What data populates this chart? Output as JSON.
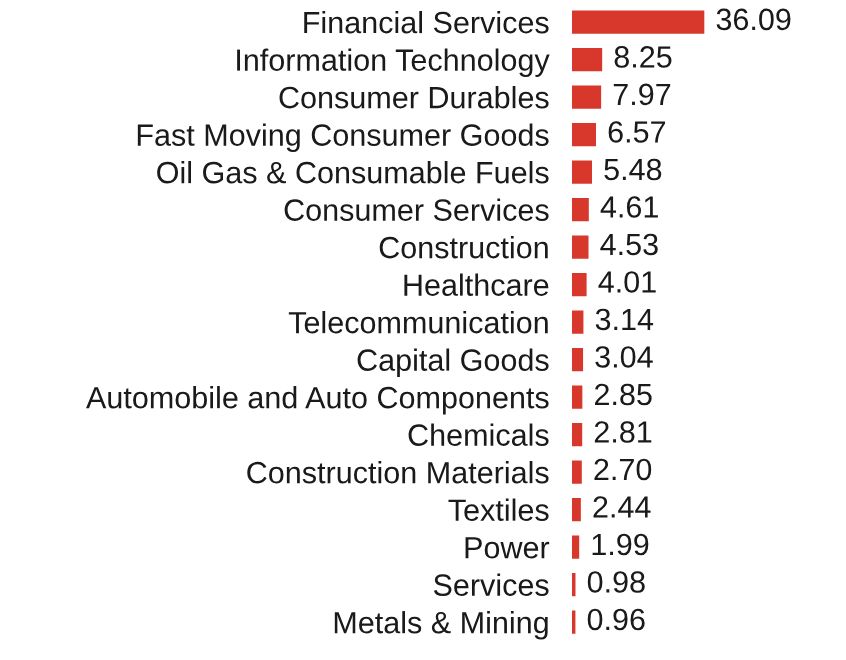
{
  "chart_data": {
    "type": "bar",
    "orientation": "horizontal",
    "data_labels": true,
    "color": "#d8382b",
    "categories": [
      "Financial Services",
      "Information Technology",
      "Consumer Durables",
      "Fast Moving Consumer Goods",
      "Oil Gas & Consumable Fuels",
      "Consumer Services",
      "Construction",
      "Healthcare",
      "Telecommunication",
      "Capital Goods",
      "Automobile and Auto Components",
      "Chemicals",
      "Construction Materials",
      "Textiles",
      "Power",
      "Services",
      "Metals & Mining"
    ],
    "values": [
      36.09,
      8.25,
      7.97,
      6.57,
      5.48,
      4.61,
      4.53,
      4.01,
      3.14,
      3.04,
      2.85,
      2.81,
      2.7,
      2.44,
      1.99,
      0.98,
      0.96
    ],
    "value_labels": [
      "36.09",
      "8.25",
      "7.97",
      "6.57",
      "5.48",
      "4.61",
      "4.53",
      "4.01",
      "3.14",
      "3.04",
      "2.85",
      "2.81",
      "2.70",
      "2.44",
      "1.99",
      "0.98",
      "0.96"
    ]
  }
}
